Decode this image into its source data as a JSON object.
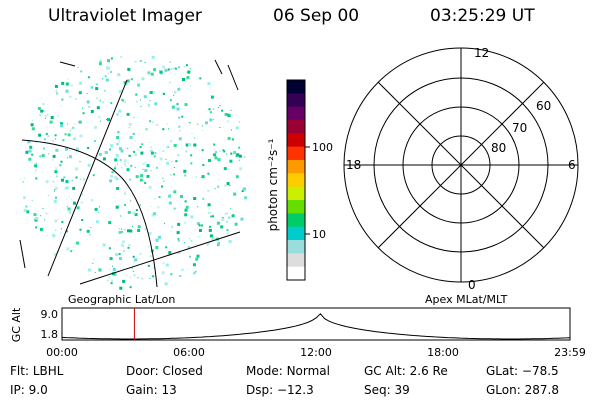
{
  "header": {
    "instrument": "Ultraviolet Imager",
    "date": "06 Sep 00",
    "time": "03:25:29 UT"
  },
  "colorbar": {
    "unit_label": "photon cm⁻²s⁻¹",
    "ticks": [
      "100",
      "10"
    ],
    "colors": [
      "#000033",
      "#330055",
      "#660066",
      "#990033",
      "#cc0000",
      "#ff3300",
      "#ff9900",
      "#ffcc00",
      "#ccee00",
      "#66dd00",
      "#00cc66",
      "#00cccc",
      "#99dddd",
      "#dddddd",
      "#ffffff"
    ]
  },
  "left_panel": {
    "label": "Geographic Lat/Lon"
  },
  "polar_plot": {
    "label": "Apex MLat/MLT",
    "mlt_labels": [
      "12",
      "18",
      "6",
      "0"
    ],
    "lat_labels": [
      "60",
      "70",
      "80"
    ]
  },
  "altitude_plot": {
    "ylabel": "GC Alt",
    "y_ticks": [
      "9.0",
      "1.8"
    ],
    "x_ticks": [
      "00:00",
      "06:00",
      "12:00",
      "18:00",
      "23:59"
    ],
    "current_time_hours": 3.42
  },
  "footer": {
    "flt_label": "Flt:",
    "flt_value": "LBHL",
    "ip_label": "IP:",
    "ip_value": "9.0",
    "door_label": "Door:",
    "door_value": "Closed",
    "gain_label": "Gain:",
    "gain_value": "13",
    "mode_label": "Mode:",
    "mode_value": "Normal",
    "dsp_label": "Dsp:",
    "dsp_value": "−12.3",
    "gcalt_label": "GC Alt:",
    "gcalt_value": "2.6 Re",
    "seq_label": "Seq:",
    "seq_value": "39",
    "glat_label": "GLat:",
    "glat_value": "−78.5",
    "glon_label": "GLon:",
    "glon_value": "287.8"
  }
}
